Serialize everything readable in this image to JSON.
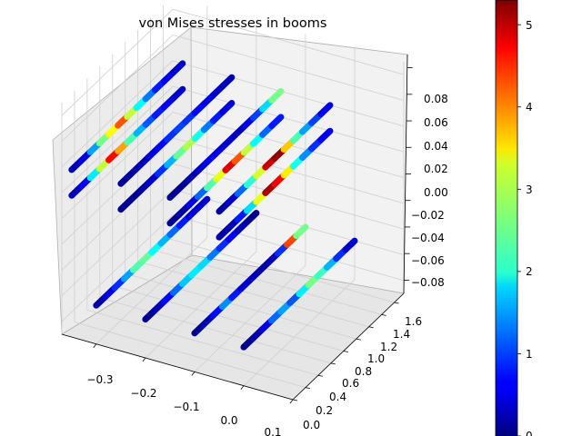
{
  "chart_data": {
    "type": "scatter3d",
    "title": "von Mises stresses in booms",
    "colormap": "jet",
    "colorbar": {
      "ticks": [
        "0",
        "1",
        "2",
        "3",
        "4",
        "5"
      ],
      "range": [
        0,
        5.3
      ]
    },
    "axes": {
      "x": {
        "ticks": [
          "−0.3",
          "−0.2",
          "−0.1",
          "0.0",
          "0.1"
        ],
        "range": [
          -0.37,
          0.1
        ]
      },
      "y": {
        "ticks": [
          "0.0",
          "0.2",
          "0.4",
          "0.6",
          "0.8",
          "1.0",
          "1.2",
          "1.4",
          "1.6"
        ],
        "range": [
          0,
          1.75
        ]
      },
      "z": {
        "ticks": [
          "−0.08",
          "−0.06",
          "−0.04",
          "−0.02",
          "0.00",
          "0.02",
          "0.04",
          "0.06",
          "0.08"
        ],
        "range": [
          -0.09,
          0.09
        ]
      }
    },
    "grid": true,
    "series": [
      {
        "x": -0.35,
        "z": 0.04,
        "y": [
          0,
          1.75
        ],
        "stress_profile": [
          0.3,
          0.5,
          1.5,
          2.6,
          3.3,
          4.2,
          3.0,
          2.0,
          1.3,
          0.8,
          0.6,
          0.4
        ]
      },
      {
        "x": -0.35,
        "z": 0.02,
        "y": [
          0,
          1.75
        ],
        "stress_profile": [
          0.3,
          0.6,
          1.9,
          3.0,
          4.6,
          3.8,
          2.4,
          1.6,
          1.1,
          0.8,
          0.6,
          0.4
        ]
      },
      {
        "x": -0.25,
        "z": 0.04,
        "y": [
          0,
          1.75
        ],
        "stress_profile": [
          0.1,
          0.2,
          0.3,
          0.5,
          0.7,
          0.9,
          1.0,
          0.9,
          0.7,
          0.5,
          0.4,
          0.3
        ]
      },
      {
        "x": -0.25,
        "z": 0.02,
        "y": [
          0,
          1.75
        ],
        "stress_profile": [
          0.1,
          0.1,
          0.2,
          0.4,
          0.9,
          1.6,
          2.5,
          2.9,
          2.1,
          1.3,
          0.8,
          0.5
        ]
      },
      {
        "x": -0.15,
        "z": 0.04,
        "y": [
          0,
          1.75
        ],
        "stress_profile": [
          0.1,
          0.1,
          0.2,
          0.4,
          0.6,
          0.5,
          0.4,
          0.3,
          0.5,
          1.0,
          1.8,
          2.6
        ]
      },
      {
        "x": -0.15,
        "z": 0.02,
        "y": [
          0,
          1.75
        ],
        "stress_profile": [
          0.1,
          0.2,
          0.5,
          1.2,
          2.4,
          3.2,
          4.8,
          4.2,
          3.0,
          2.0,
          1.2,
          0.8
        ]
      },
      {
        "x": -0.05,
        "z": 0.04,
        "y": [
          0,
          1.75
        ],
        "stress_profile": [
          0.2,
          0.4,
          1.2,
          2.2,
          3.1,
          4.9,
          5.2,
          3.6,
          2.4,
          1.5,
          1.0,
          0.6
        ]
      },
      {
        "x": -0.05,
        "z": 0.02,
        "y": [
          0,
          1.75
        ],
        "stress_profile": [
          0.2,
          0.3,
          0.8,
          1.8,
          3.2,
          5.1,
          4.7,
          3.4,
          2.1,
          1.4,
          0.9,
          0.6
        ]
      },
      {
        "x": -0.3,
        "z": -0.06,
        "y": [
          0,
          1.75
        ],
        "stress_profile": [
          0.2,
          0.5,
          0.9,
          1.5,
          2.4,
          2.5,
          2.0,
          1.6,
          1.2,
          0.8,
          0.5,
          0.4
        ]
      },
      {
        "x": -0.2,
        "z": -0.06,
        "y": [
          0,
          1.75
        ],
        "stress_profile": [
          0.1,
          0.3,
          0.7,
          1.2,
          1.7,
          1.9,
          1.8,
          1.3,
          0.9,
          0.6,
          0.3,
          0.1
        ]
      },
      {
        "x": -0.1,
        "z": -0.06,
        "y": [
          0,
          1.75
        ],
        "stress_profile": [
          0.1,
          0.2,
          0.7,
          1.4,
          0.8,
          0.4,
          0.3,
          0.2,
          0.3,
          0.9,
          4.3,
          2.6
        ]
      },
      {
        "x": 0.0,
        "z": -0.06,
        "y": [
          0,
          1.75
        ],
        "stress_profile": [
          0.1,
          0.2,
          0.5,
          1.2,
          1.5,
          1.1,
          1.9,
          2.6,
          2.3,
          1.6,
          0.9,
          0.4
        ]
      }
    ]
  }
}
